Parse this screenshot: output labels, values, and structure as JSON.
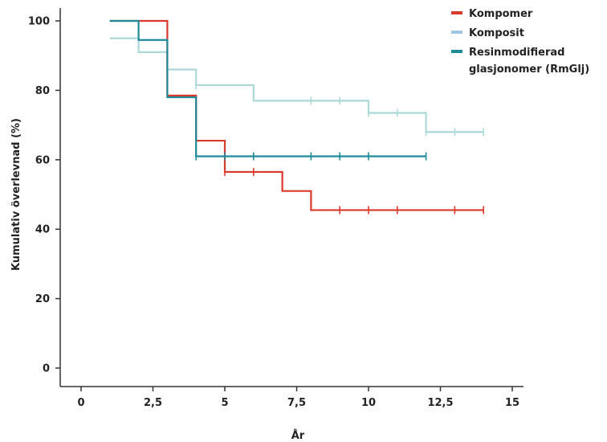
{
  "chart_data": {
    "type": "line",
    "step": true,
    "title": "",
    "xlabel": "År",
    "ylabel": "Kumulativ överlevnad (%)",
    "xlim": [
      0,
      15
    ],
    "ylim": [
      0,
      100
    ],
    "x_ticks": [
      0,
      2.5,
      5,
      7.5,
      10,
      12.5,
      15
    ],
    "x_tick_labels": [
      "0",
      "2,5",
      "5",
      "7,5",
      "10",
      "12,5",
      "15"
    ],
    "y_ticks": [
      0,
      20,
      40,
      60,
      80,
      100
    ],
    "y_tick_labels": [
      "0",
      "20",
      "40",
      "60",
      "80",
      "100"
    ],
    "grid": false,
    "legend_position": "top-right",
    "series": [
      {
        "name": "Kompomer",
        "color": "#d93a2b",
        "legend_color": "#d93a2b",
        "steps": [
          [
            1,
            100
          ],
          [
            3,
            78.5
          ],
          [
            4,
            65.5
          ],
          [
            5,
            56.5
          ],
          [
            7,
            51
          ],
          [
            8,
            45.5
          ],
          [
            14,
            45.5
          ]
        ],
        "censored": [
          5,
          6,
          9,
          10,
          11,
          13,
          14
        ]
      },
      {
        "name": "Komposit",
        "color": "#acd8d8",
        "legend_color": "#9fc7e3",
        "steps": [
          [
            1,
            95
          ],
          [
            2,
            91
          ],
          [
            3,
            86
          ],
          [
            4,
            81.5
          ],
          [
            6,
            77
          ],
          [
            10,
            73.5
          ],
          [
            12,
            68
          ],
          [
            14,
            68
          ]
        ],
        "censored": [
          4,
          8,
          9,
          10,
          11,
          12,
          13,
          14
        ]
      },
      {
        "name": "Resinmodifierad glasjonomer (RmGlj)",
        "name_lines": [
          "Resinmodifierad",
          "glasjonomer (RmGlj)"
        ],
        "color": "#1d8a9a",
        "legend_color": "#1d8a9a",
        "steps": [
          [
            1,
            100
          ],
          [
            2,
            94.5
          ],
          [
            3,
            78
          ],
          [
            4,
            61
          ],
          [
            12,
            61
          ]
        ],
        "censored": [
          4,
          5,
          6,
          8,
          9,
          10,
          12
        ]
      }
    ]
  }
}
